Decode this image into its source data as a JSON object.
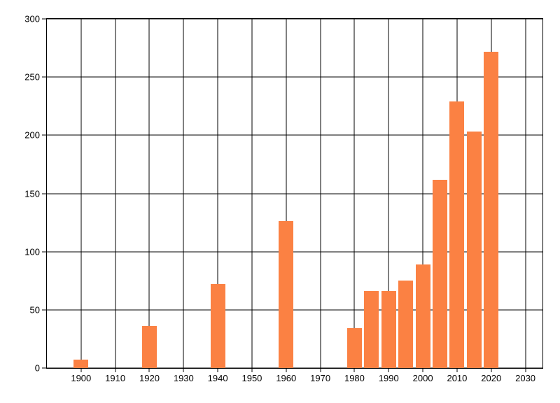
{
  "chart_data": {
    "type": "bar",
    "title": "",
    "xlabel": "",
    "ylabel": "",
    "legend": "none",
    "grid": "on",
    "bar_color": "#FB8143",
    "grid_color": "#000000",
    "axis_color": "#000000",
    "label_color": "#000000",
    "x_domain": [
      1890,
      2035
    ],
    "ylim": [
      0,
      300
    ],
    "bar_width_years": 4.3,
    "x": [
      1900,
      1920,
      1940,
      1960,
      1980,
      1985,
      1990,
      1995,
      2000,
      2005,
      2010,
      2015,
      2020
    ],
    "values": [
      7,
      36,
      72,
      126,
      34,
      66,
      66,
      75,
      89,
      162,
      229,
      203,
      272
    ],
    "x_ticks": [
      1900,
      1910,
      1920,
      1930,
      1940,
      1950,
      1960,
      1970,
      1980,
      1990,
      2000,
      2010,
      2020,
      2030
    ],
    "x_tick_labels": [
      "1900",
      "1910",
      "1920",
      "1930",
      "1940",
      "1950",
      "1960",
      "1970",
      "1980",
      "1990",
      "2000",
      "2010",
      "2020",
      "2030"
    ],
    "y_ticks": [
      0,
      50,
      100,
      150,
      200,
      250,
      300
    ],
    "y_tick_labels": [
      "0",
      "50",
      "100",
      "150",
      "200",
      "250",
      "300"
    ]
  }
}
